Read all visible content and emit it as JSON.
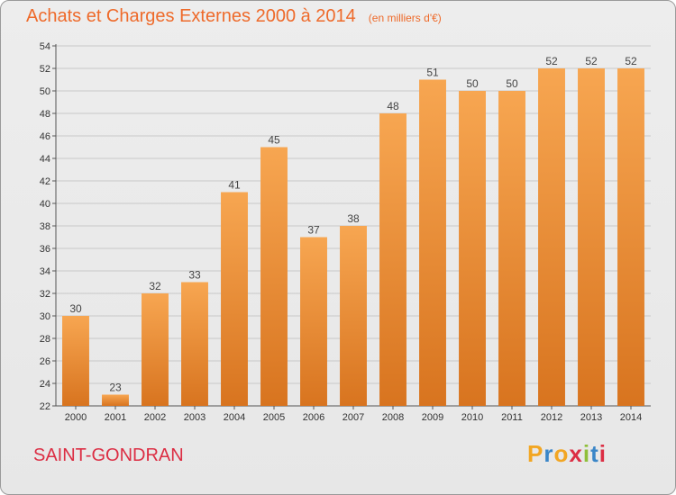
{
  "header": {
    "title": "Achats et Charges Externes 2000 à 2014",
    "subtitle": "(en milliers d'€)"
  },
  "footer": {
    "location": "SAINT-GONDRAN",
    "brand_letters": [
      "P",
      "r",
      "o",
      "x",
      "i",
      "t",
      "i"
    ],
    "brand_colors": [
      "#f2a623",
      "#3a86c8",
      "#f2a623",
      "#dc2e44",
      "#8fbf3a",
      "#3a86c8",
      "#dc2e44"
    ]
  },
  "colors": {
    "bar_light": "#f7a651",
    "bar_dark": "#d8741f",
    "grid": "#c8c8c8",
    "title": "#ee6a2a",
    "location": "#dc2e44"
  },
  "chart_data": {
    "type": "bar",
    "title": "Achats et Charges Externes 2000 à 2014",
    "subtitle": "(en milliers d'€)",
    "categories": [
      "2000",
      "2001",
      "2002",
      "2003",
      "2004",
      "2005",
      "2006",
      "2007",
      "2008",
      "2009",
      "2010",
      "2011",
      "2012",
      "2013",
      "2014"
    ],
    "values": [
      30,
      23,
      32,
      33,
      41,
      45,
      37,
      38,
      48,
      51,
      50,
      50,
      52,
      52,
      52
    ],
    "ylim": [
      22,
      54
    ],
    "yticks": [
      22,
      24,
      26,
      28,
      30,
      32,
      34,
      36,
      38,
      40,
      42,
      44,
      46,
      48,
      50,
      52,
      54
    ],
    "grid": true,
    "data_labels": true
  }
}
